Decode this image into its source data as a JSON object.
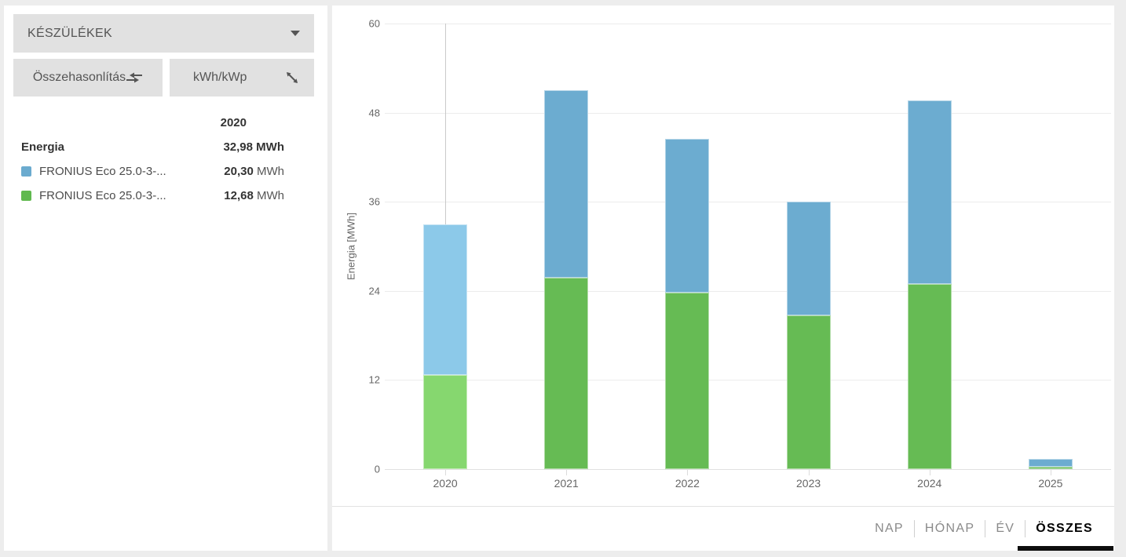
{
  "sidebar": {
    "devices_dropdown_label": "KÉSZÜLÉKEK",
    "compare_button_label": "Összehasonlítás",
    "unit_button_label": "kWh/kWp",
    "summary": {
      "period": "2020",
      "total_label": "Energia",
      "total_value": "32,98",
      "total_unit": "MWh",
      "rows": [
        {
          "label": "FRONIUS Eco 25.0-3-...",
          "value": "20,30",
          "unit": "MWh",
          "color": "#6babcf"
        },
        {
          "label": "FRONIUS Eco 25.0-3-...",
          "value": "12,68",
          "unit": "MWh",
          "color": "#60b94f"
        }
      ]
    }
  },
  "chart_data": {
    "type": "bar",
    "stacked": true,
    "title": "",
    "xlabel": "",
    "ylabel": "Energia [MWh]",
    "ylim": [
      0,
      60
    ],
    "yticks": [
      0,
      12,
      24,
      36,
      48,
      60
    ],
    "grid": true,
    "legend_position": "sidebar",
    "categories": [
      "2020",
      "2021",
      "2022",
      "2023",
      "2024",
      "2025"
    ],
    "series": [
      {
        "name": "FRONIUS Eco 25.0-3-... (green)",
        "color": "#66bb54",
        "highlight_color": "#86d76f",
        "values": [
          12.68,
          25.8,
          23.8,
          20.7,
          24.9,
          0.35
        ]
      },
      {
        "name": "FRONIUS Eco 25.0-3-... (blue)",
        "color": "#6cacd0",
        "highlight_color": "#8cc9e9",
        "values": [
          20.3,
          25.2,
          20.7,
          15.3,
          24.75,
          1.05
        ]
      }
    ],
    "totals": [
      32.98,
      51.0,
      44.5,
      36.0,
      49.65,
      1.4
    ],
    "highlighted_category": "2020"
  },
  "tabs": [
    {
      "label": "NAP",
      "active": false
    },
    {
      "label": "HÓNAP",
      "active": false
    },
    {
      "label": "ÉV",
      "active": false
    },
    {
      "label": "ÖSSZES",
      "active": true
    }
  ]
}
